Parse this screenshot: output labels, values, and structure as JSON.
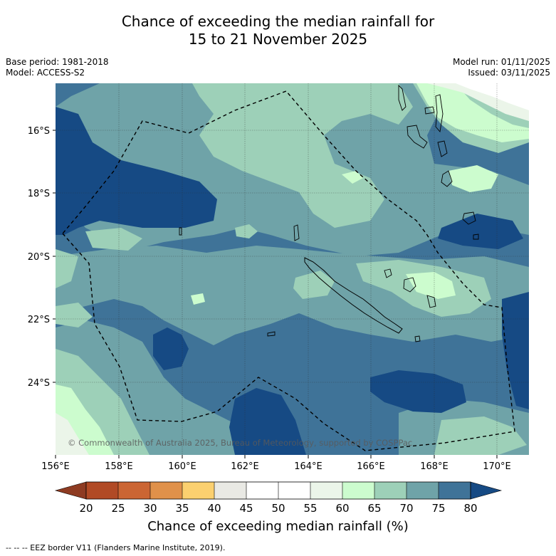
{
  "header": {
    "title_line1": "Chance of exceeding the median rainfall for",
    "title_line2": "15 to 21 November 2025",
    "base_period": "Base period: 1981-2018",
    "model": "Model: ACCESS-S2",
    "model_run": "Model run: 01/11/2025",
    "issued": "Issued: 03/11/2025"
  },
  "map": {
    "lat_labels": [
      "16°S",
      "18°S",
      "20°S",
      "22°S",
      "24°S"
    ],
    "lon_labels": [
      "156°E",
      "158°E",
      "160°E",
      "162°E",
      "164°E",
      "166°E",
      "168°E",
      "170°E"
    ],
    "copyright": "© Commonwealth of Australia 2025, Bureau of Meteorology, supported by COSPPac"
  },
  "colorbar": {
    "ticks": [
      "20",
      "25",
      "30",
      "35",
      "40",
      "45",
      "50",
      "55",
      "60",
      "65",
      "70",
      "75",
      "80"
    ],
    "colors": {
      "lt20": "#8e3b22",
      "c20": "#b14a25",
      "c25": "#cb6533",
      "c30": "#e0914a",
      "c35": "#fbd06f",
      "c40": "#e9e9e4",
      "c45": "#ffffff",
      "c50": "#ffffff",
      "c55": "#ebf5e9",
      "c60": "#ccfcce",
      "c65": "#9dd0b8",
      "c70": "#6fa3a8",
      "c75": "#3f7398",
      "gt80": "#164a84"
    },
    "label": "Chance of exceeding median rainfall (%)"
  },
  "footnote": "-- -- -- EEZ border V11 (Flanders Marine Institute, 2019)."
}
